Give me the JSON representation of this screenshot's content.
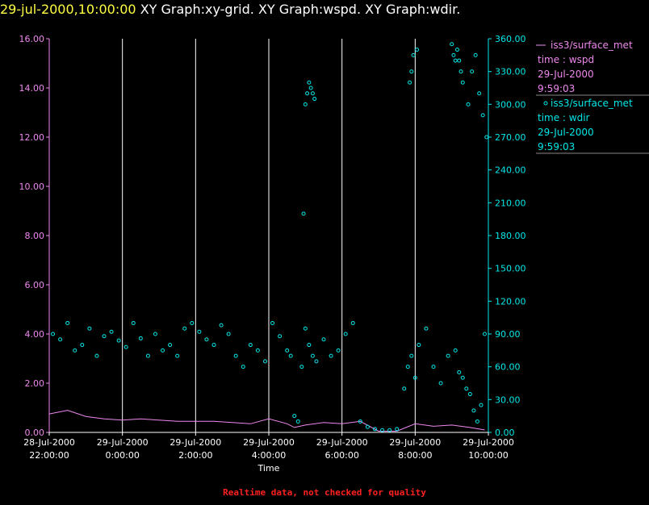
{
  "header": {
    "timestamp": "29-jul-2000,10:00:00",
    "graphs": [
      "XY Graph:xy-grid.",
      "XY Graph:wspd.",
      "XY Graph:wdir."
    ]
  },
  "footer": {
    "note": "Realtime data, not checked for quality"
  },
  "colors": {
    "wspd": "#ee88ee",
    "wdir": "#00e8e8",
    "grid": "#ffffff",
    "timestamp": "#ffff44",
    "footer": "#ff2020"
  },
  "chart_data": {
    "type": "scatter",
    "xlabel": "Time",
    "x_ticks": [
      {
        "date": "28-Jul-2000",
        "time": "22:00:00",
        "hours": -2
      },
      {
        "date": "29-Jul-2000",
        "time": "0:00:00",
        "hours": 0
      },
      {
        "date": "29-Jul-2000",
        "time": "2:00:00",
        "hours": 2
      },
      {
        "date": "29-Jul-2000",
        "time": "4:00:00",
        "hours": 4
      },
      {
        "date": "29-Jul-2000",
        "time": "6:00:00",
        "hours": 6
      },
      {
        "date": "29-Jul-2000",
        "time": "8:00:00",
        "hours": 8
      },
      {
        "date": "29-Jul-2000",
        "time": "10:00:00",
        "hours": 10
      }
    ],
    "xlim": [
      -2,
      10
    ],
    "left_axis": {
      "ylim": [
        0,
        16
      ],
      "ticks": [
        "0.00",
        "2.00",
        "4.00",
        "6.00",
        "8.00",
        "10.00",
        "12.00",
        "14.00",
        "16.00"
      ]
    },
    "right_axis": {
      "ylim": [
        0,
        360
      ],
      "ticks": [
        "0.00",
        "30.00",
        "60.00",
        "90.00",
        "120.00",
        "150.00",
        "180.00",
        "210.00",
        "240.00",
        "270.00",
        "300.00",
        "330.00",
        "360.00"
      ]
    },
    "legend": [
      {
        "series": "wspd",
        "source": "iss3/surface_met",
        "var": "time : wspd",
        "date": "29-Jul-2000",
        "time": "9:59:03"
      },
      {
        "series": "wdir",
        "source": "iss3/surface_met",
        "var": "time : wdir",
        "date": "29-Jul-2000",
        "time": "9:59:03"
      }
    ],
    "wspd": {
      "style": "line",
      "x": [
        -2,
        -1.5,
        -1,
        -0.5,
        0,
        0.5,
        1,
        1.5,
        2,
        2.5,
        3,
        3.5,
        4,
        4.5,
        4.7,
        5,
        5.5,
        6,
        6.5,
        7,
        7.5,
        8,
        8.5,
        9,
        9.5,
        9.9
      ],
      "y": [
        0.75,
        0.9,
        0.65,
        0.55,
        0.5,
        0.55,
        0.5,
        0.45,
        0.45,
        0.45,
        0.4,
        0.35,
        0.55,
        0.35,
        0.2,
        0.3,
        0.4,
        0.35,
        0.45,
        0.05,
        0.05,
        0.35,
        0.25,
        0.3,
        0.2,
        0.1
      ]
    },
    "wdir": {
      "style": "points",
      "x": [
        -1.9,
        -1.7,
        -1.5,
        -1.3,
        -1.1,
        -0.9,
        -0.7,
        -0.5,
        -0.3,
        -0.1,
        0.1,
        0.3,
        0.5,
        0.7,
        0.9,
        1.1,
        1.3,
        1.5,
        1.7,
        1.9,
        2.1,
        2.3,
        2.5,
        2.7,
        2.9,
        3.1,
        3.3,
        3.5,
        3.7,
        3.9,
        4.1,
        4.3,
        4.5,
        4.6,
        4.7,
        4.8,
        4.9,
        5.0,
        5.1,
        5.2,
        5.3,
        5.5,
        5.7,
        5.9,
        6.1,
        6.3,
        6.5,
        6.7,
        6.9,
        7.1,
        7.3,
        7.5,
        7.7,
        7.8,
        7.9,
        8.0,
        8.1,
        8.3,
        8.5,
        8.7,
        8.9,
        9.1,
        9.2,
        9.3,
        9.4,
        9.5,
        9.6,
        9.7,
        9.8,
        9.9,
        7.85,
        7.9,
        7.95,
        8.05,
        9.0,
        9.05,
        9.1,
        9.15,
        9.2,
        9.25,
        9.3,
        9.45,
        9.55,
        9.65,
        9.75,
        9.85,
        9.95,
        4.95,
        5.0,
        5.05,
        5.1,
        5.15,
        5.2,
        5.25
      ],
      "y": [
        90,
        85,
        100,
        75,
        80,
        95,
        70,
        88,
        92,
        84,
        78,
        100,
        86,
        70,
        90,
        75,
        80,
        70,
        95,
        100,
        92,
        85,
        80,
        98,
        90,
        70,
        60,
        80,
        75,
        65,
        100,
        88,
        75,
        70,
        15,
        10,
        60,
        95,
        80,
        70,
        65,
        85,
        70,
        75,
        90,
        100,
        10,
        5,
        3,
        2,
        2,
        3,
        40,
        60,
        70,
        50,
        80,
        95,
        60,
        45,
        70,
        75,
        55,
        50,
        40,
        35,
        20,
        10,
        25,
        90,
        320,
        330,
        345,
        350,
        355,
        345,
        340,
        350,
        340,
        330,
        320,
        300,
        330,
        345,
        310,
        290,
        270,
        200,
        300,
        310,
        320,
        315,
        310,
        305
      ]
    }
  }
}
